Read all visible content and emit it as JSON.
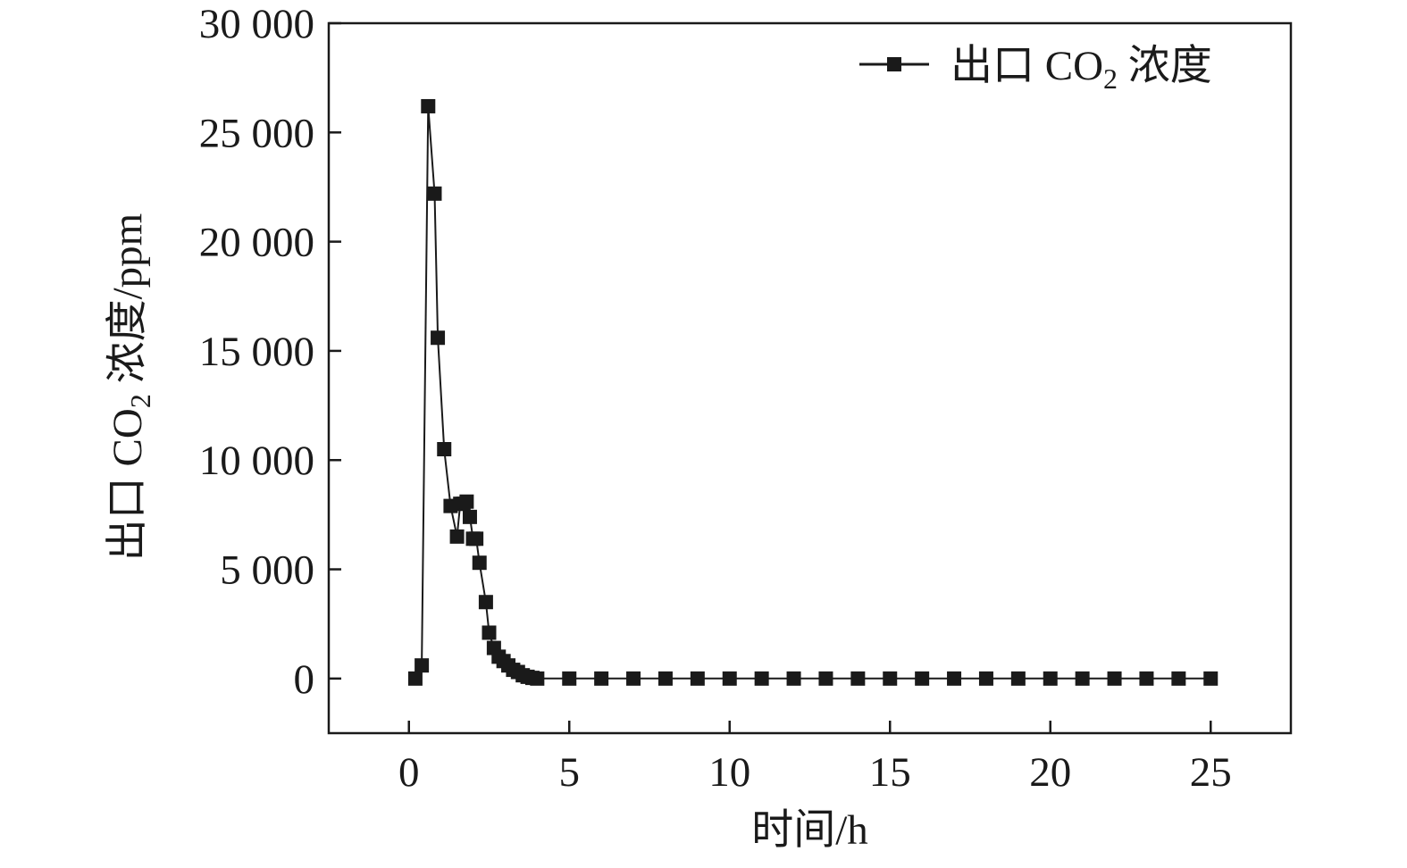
{
  "chart_data": {
    "type": "line",
    "xlabel": "时间/h",
    "ylabel_parts": {
      "before_sub": "出口 CO",
      "sub": "2",
      "after_sub": " 浓度/ppm"
    },
    "xlim": [
      -2.5,
      27.5
    ],
    "ylim": [
      -2500,
      30000
    ],
    "xticks": [
      0,
      5,
      10,
      15,
      20,
      25
    ],
    "xtick_labels": [
      "0",
      "5",
      "10",
      "15",
      "20",
      "25"
    ],
    "yticks": [
      0,
      5000,
      10000,
      15000,
      20000,
      25000,
      30000
    ],
    "ytick_labels": [
      "0",
      "5 000",
      "10 000",
      "15 000",
      "20 000",
      "25 000",
      "30 000"
    ],
    "grid": false,
    "legend_position": "top-right",
    "series": [
      {
        "name_parts": {
          "before_sub": "出口 CO",
          "sub": "2",
          "after_sub": " 浓度"
        },
        "color": "#1a1a1a",
        "marker": "square",
        "x": [
          0.2,
          0.4,
          0.6,
          0.8,
          0.9,
          1.1,
          1.3,
          1.5,
          1.6,
          1.7,
          1.8,
          1.9,
          2.0,
          2.1,
          2.2,
          2.4,
          2.5,
          2.65,
          2.8,
          2.95,
          3.1,
          3.25,
          3.4,
          3.55,
          3.7,
          3.85,
          4.0,
          5,
          6,
          7,
          8,
          9,
          10,
          11,
          12,
          13,
          14,
          15,
          16,
          17,
          18,
          19,
          20,
          21,
          22,
          23,
          24,
          25
        ],
        "y": [
          0,
          600,
          26200,
          22200,
          15600,
          10500,
          7900,
          6500,
          8000,
          8000,
          8100,
          7400,
          6400,
          6400,
          5300,
          3500,
          2100,
          1400,
          1000,
          800,
          600,
          400,
          300,
          150,
          80,
          30,
          0,
          0,
          0,
          0,
          0,
          0,
          0,
          0,
          0,
          0,
          0,
          0,
          0,
          0,
          0,
          0,
          0,
          0,
          0,
          0,
          0,
          0
        ]
      }
    ]
  }
}
